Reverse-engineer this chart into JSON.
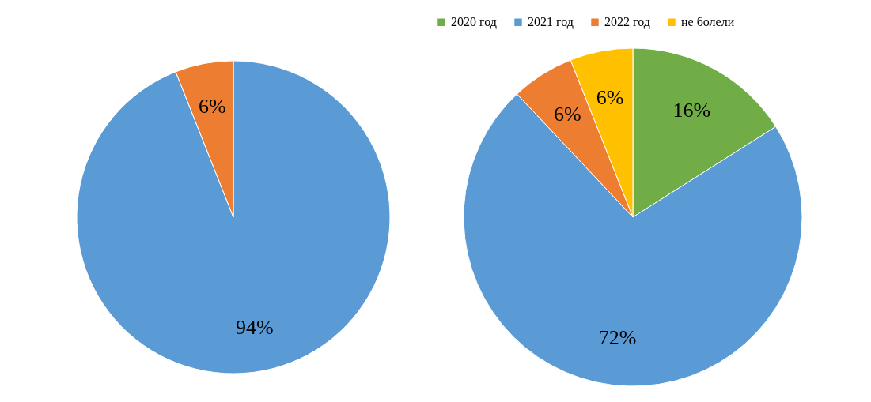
{
  "chart_data": [
    {
      "type": "pie",
      "categories": [
        null,
        null
      ],
      "values": [
        94,
        6
      ],
      "colors": [
        "#5b9bd5",
        "#ed7d31"
      ],
      "value_labels": [
        "94%",
        "6%"
      ],
      "legend": false
    },
    {
      "type": "pie",
      "categories": [
        "2020 год",
        "2021 год",
        "2022 год",
        "не болели"
      ],
      "values": [
        16,
        72,
        6,
        6
      ],
      "colors": [
        "#70ad47",
        "#5b9bd5",
        "#ed7d31",
        "#ffc000"
      ],
      "value_labels": [
        "16%",
        "72%",
        "6%",
        "6%"
      ],
      "legend": "top"
    }
  ]
}
